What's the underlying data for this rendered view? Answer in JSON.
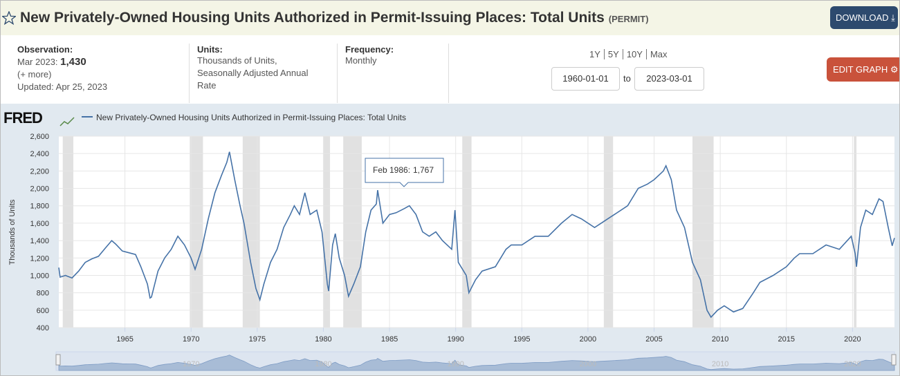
{
  "header": {
    "title": "New Privately-Owned Housing Units Authorized in Permit-Issuing Places: Total Units",
    "code": "(PERMIT)",
    "download": "DOWNLOAD"
  },
  "info": {
    "observation_label": "Observation:",
    "observation_date": "Mar 2023:",
    "observation_value": "1,430",
    "more": "(+ more)",
    "updated": "Updated: Apr 25, 2023",
    "units_label": "Units:",
    "units": [
      "Thousands of Units,",
      "Seasonally Adjusted Annual",
      "Rate"
    ],
    "frequency_label": "Frequency:",
    "frequency": "Monthly",
    "range_buttons": [
      "1Y",
      "5Y",
      "10Y",
      "Max"
    ],
    "start_date": "1960-01-01",
    "to": "to",
    "end_date": "2023-03-01",
    "edit": "EDIT GRAPH"
  },
  "chart_data": {
    "type": "line",
    "logo": "FRED",
    "ylabel": "Thousands of Units",
    "grid": true,
    "x": [
      1960.0,
      1960.1,
      1960.5,
      1961.0,
      1961.5,
      1962.0,
      1962.5,
      1963.0,
      1963.5,
      1964.0,
      1964.3,
      1964.8,
      1965.3,
      1965.8,
      1966.2,
      1966.7,
      1966.9,
      1967.0,
      1967.5,
      1968.0,
      1968.5,
      1969.0,
      1969.5,
      1970.0,
      1970.3,
      1970.8,
      1971.3,
      1971.8,
      1972.3,
      1972.7,
      1972.9,
      1973.3,
      1973.7,
      1974.0,
      1974.5,
      1974.9,
      1975.2,
      1975.5,
      1976.0,
      1976.5,
      1977.0,
      1977.5,
      1977.8,
      1978.2,
      1978.6,
      1979.0,
      1979.5,
      1979.9,
      1980.3,
      1980.4,
      1980.7,
      1980.9,
      1981.2,
      1981.6,
      1981.9,
      1982.3,
      1982.8,
      1983.2,
      1983.6,
      1984.0,
      1984.1,
      1984.5,
      1985.0,
      1985.5,
      1986.1,
      1986.5,
      1987.0,
      1987.5,
      1988.0,
      1988.5,
      1989.0,
      1989.7,
      1989.95,
      1990.2,
      1990.8,
      1991.0,
      1991.5,
      1992.0,
      1993.0,
      1993.8,
      1994.2,
      1995.0,
      1995.5,
      1996.0,
      1997.0,
      1998.0,
      1998.8,
      1999.5,
      2000.5,
      2001.0,
      2001.5,
      2002.0,
      2003.0,
      2003.8,
      2004.5,
      2005.0,
      2005.7,
      2005.9,
      2006.3,
      2006.7,
      2007.3,
      2007.9,
      2008.5,
      2009.0,
      2009.3,
      2009.8,
      2010.3,
      2011.0,
      2011.7,
      2012.5,
      2013.0,
      2014.0,
      2015.0,
      2015.6,
      2016.0,
      2017.0,
      2018.0,
      2019.0,
      2019.9,
      2020.2,
      2020.3,
      2020.6,
      2021.0,
      2021.5,
      2022.0,
      2022.3,
      2022.7,
      2023.0,
      2023.17
    ],
    "series": [
      {
        "name": "New Privately-Owned Housing Units Authorized in Permit-Issuing Places: Total Units",
        "color": "#4572a7",
        "values": [
          1090,
          980,
          1000,
          970,
          1050,
          1150,
          1190,
          1220,
          1310,
          1400,
          1360,
          1280,
          1260,
          1240,
          1100,
          900,
          740,
          750,
          1050,
          1200,
          1300,
          1450,
          1350,
          1200,
          1070,
          1300,
          1650,
          1950,
          2150,
          2300,
          2420,
          2100,
          1800,
          1600,
          1150,
          850,
          720,
          900,
          1150,
          1300,
          1550,
          1700,
          1800,
          1700,
          1950,
          1700,
          1750,
          1500,
          900,
          820,
          1350,
          1480,
          1200,
          1000,
          760,
          900,
          1100,
          1500,
          1750,
          1820,
          1980,
          1600,
          1700,
          1720,
          1767,
          1800,
          1700,
          1500,
          1450,
          1500,
          1400,
          1300,
          1750,
          1150,
          1000,
          800,
          950,
          1050,
          1100,
          1300,
          1350,
          1350,
          1400,
          1450,
          1450,
          1600,
          1700,
          1650,
          1550,
          1600,
          1650,
          1700,
          1800,
          2000,
          2050,
          2100,
          2200,
          2260,
          2100,
          1750,
          1550,
          1150,
          950,
          600,
          520,
          600,
          650,
          580,
          620,
          800,
          920,
          1000,
          1100,
          1200,
          1250,
          1250,
          1350,
          1300,
          1450,
          1250,
          1100,
          1550,
          1750,
          1700,
          1880,
          1850,
          1550,
          1340,
          1430
        ]
      }
    ],
    "recessions": [
      [
        1960.3,
        1961.1
      ],
      [
        1969.9,
        1970.9
      ],
      [
        1973.9,
        1975.2
      ],
      [
        1980.0,
        1980.5
      ],
      [
        1981.5,
        1982.9
      ],
      [
        1990.5,
        1991.2
      ],
      [
        2001.2,
        2001.9
      ],
      [
        2007.9,
        2009.5
      ],
      [
        2020.1,
        2020.3
      ]
    ],
    "xlim": [
      1960,
      2023.17
    ],
    "xticks": [
      1965,
      1970,
      1975,
      1980,
      1985,
      1990,
      1995,
      2000,
      2005,
      2010,
      2015,
      2020
    ],
    "ylim": [
      400,
      2600
    ],
    "yticks": [
      400,
      600,
      800,
      {
        "value": 1000,
        "label": "1,000"
      },
      {
        "value": 1200,
        "label": "1,200"
      },
      {
        "value": 1400,
        "label": "1,400"
      },
      {
        "value": 1600,
        "label": "1,600"
      },
      {
        "value": 1800,
        "label": "1,800"
      },
      {
        "value": 2000,
        "label": "2,000"
      },
      {
        "value": 2200,
        "label": "2,200"
      },
      {
        "value": 2400,
        "label": "2,400"
      },
      {
        "value": 2600,
        "label": "2,600"
      }
    ],
    "navigator_xticks": [
      1970,
      1980,
      1990,
      2000,
      2010,
      2020
    ],
    "tooltip": {
      "date": "Feb 1986:",
      "value": "1,767"
    }
  }
}
